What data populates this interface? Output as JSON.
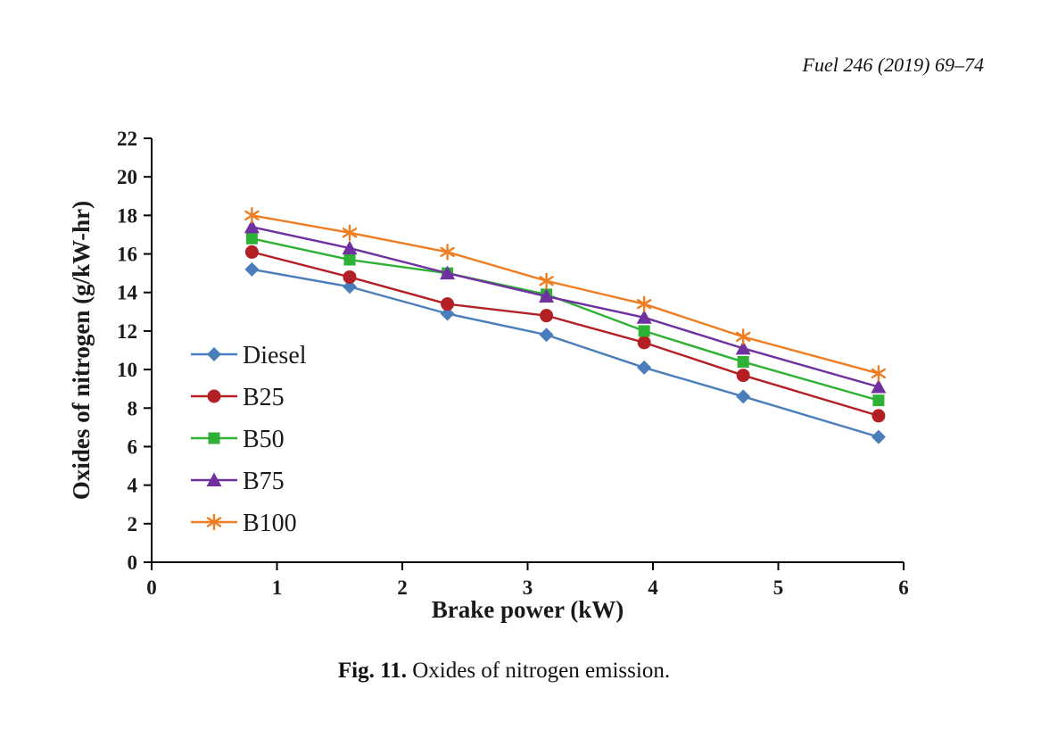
{
  "page": {
    "journal_header": "Fuel 246 (2019) 69–74",
    "caption_label": "Fig. 11.",
    "caption_text": " Oxides of nitrogen emission."
  },
  "chart_data": {
    "type": "line",
    "title": "",
    "xlabel": "Brake power (kW)",
    "ylabel": "Oxides of nitrogen (g/kW-hr)",
    "xlim": [
      0,
      6
    ],
    "ylim": [
      0,
      22
    ],
    "x_ticks": [
      0,
      1,
      2,
      3,
      4,
      5,
      6
    ],
    "y_ticks": [
      0,
      2,
      4,
      6,
      8,
      10,
      12,
      14,
      16,
      18,
      20,
      22
    ],
    "grid": false,
    "legend_position": "middle-left",
    "x": [
      0.8,
      1.58,
      2.36,
      3.15,
      3.93,
      4.72,
      5.8
    ],
    "series": [
      {
        "name": "Diesel",
        "color": "#4a7ebb",
        "marker": "diamond",
        "values": [
          15.2,
          14.3,
          12.9,
          11.8,
          10.1,
          8.6,
          6.5
        ]
      },
      {
        "name": "B25",
        "color": "#b41f24",
        "marker": "circle",
        "values": [
          16.1,
          14.8,
          13.4,
          12.8,
          11.4,
          9.7,
          7.6
        ]
      },
      {
        "name": "B50",
        "color": "#2eb135",
        "marker": "square",
        "values": [
          16.8,
          15.7,
          15.0,
          13.9,
          12.0,
          10.4,
          8.4
        ]
      },
      {
        "name": "B75",
        "color": "#7030a0",
        "marker": "triangle",
        "values": [
          17.4,
          16.3,
          15.0,
          13.8,
          12.7,
          11.1,
          9.1
        ]
      },
      {
        "name": "B100",
        "color": "#ef7d22",
        "marker": "asterisk",
        "values": [
          18.0,
          17.1,
          16.1,
          14.6,
          13.4,
          11.7,
          9.8
        ]
      }
    ],
    "text_color": "#1a1a1a",
    "axis_color": "#000000"
  }
}
